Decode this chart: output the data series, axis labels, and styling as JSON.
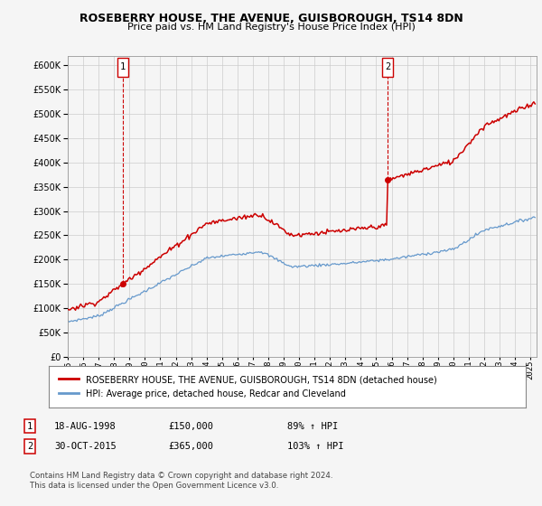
{
  "title": "ROSEBERRY HOUSE, THE AVENUE, GUISBOROUGH, TS14 8DN",
  "subtitle": "Price paid vs. HM Land Registry's House Price Index (HPI)",
  "legend_label_red": "ROSEBERRY HOUSE, THE AVENUE, GUISBOROUGH, TS14 8DN (detached house)",
  "legend_label_blue": "HPI: Average price, detached house, Redcar and Cleveland",
  "purchase1_date": "18-AUG-1998",
  "purchase1_price": 150000,
  "purchase1_label": "89% ↑ HPI",
  "purchase2_date": "30-OCT-2015",
  "purchase2_price": 365000,
  "purchase2_label": "103% ↑ HPI",
  "footer": "Contains HM Land Registry data © Crown copyright and database right 2024.\nThis data is licensed under the Open Government Licence v3.0.",
  "ylim": [
    0,
    620000
  ],
  "red_color": "#cc0000",
  "blue_color": "#6699cc",
  "background_color": "#f5f5f5",
  "grid_color": "#cccccc"
}
